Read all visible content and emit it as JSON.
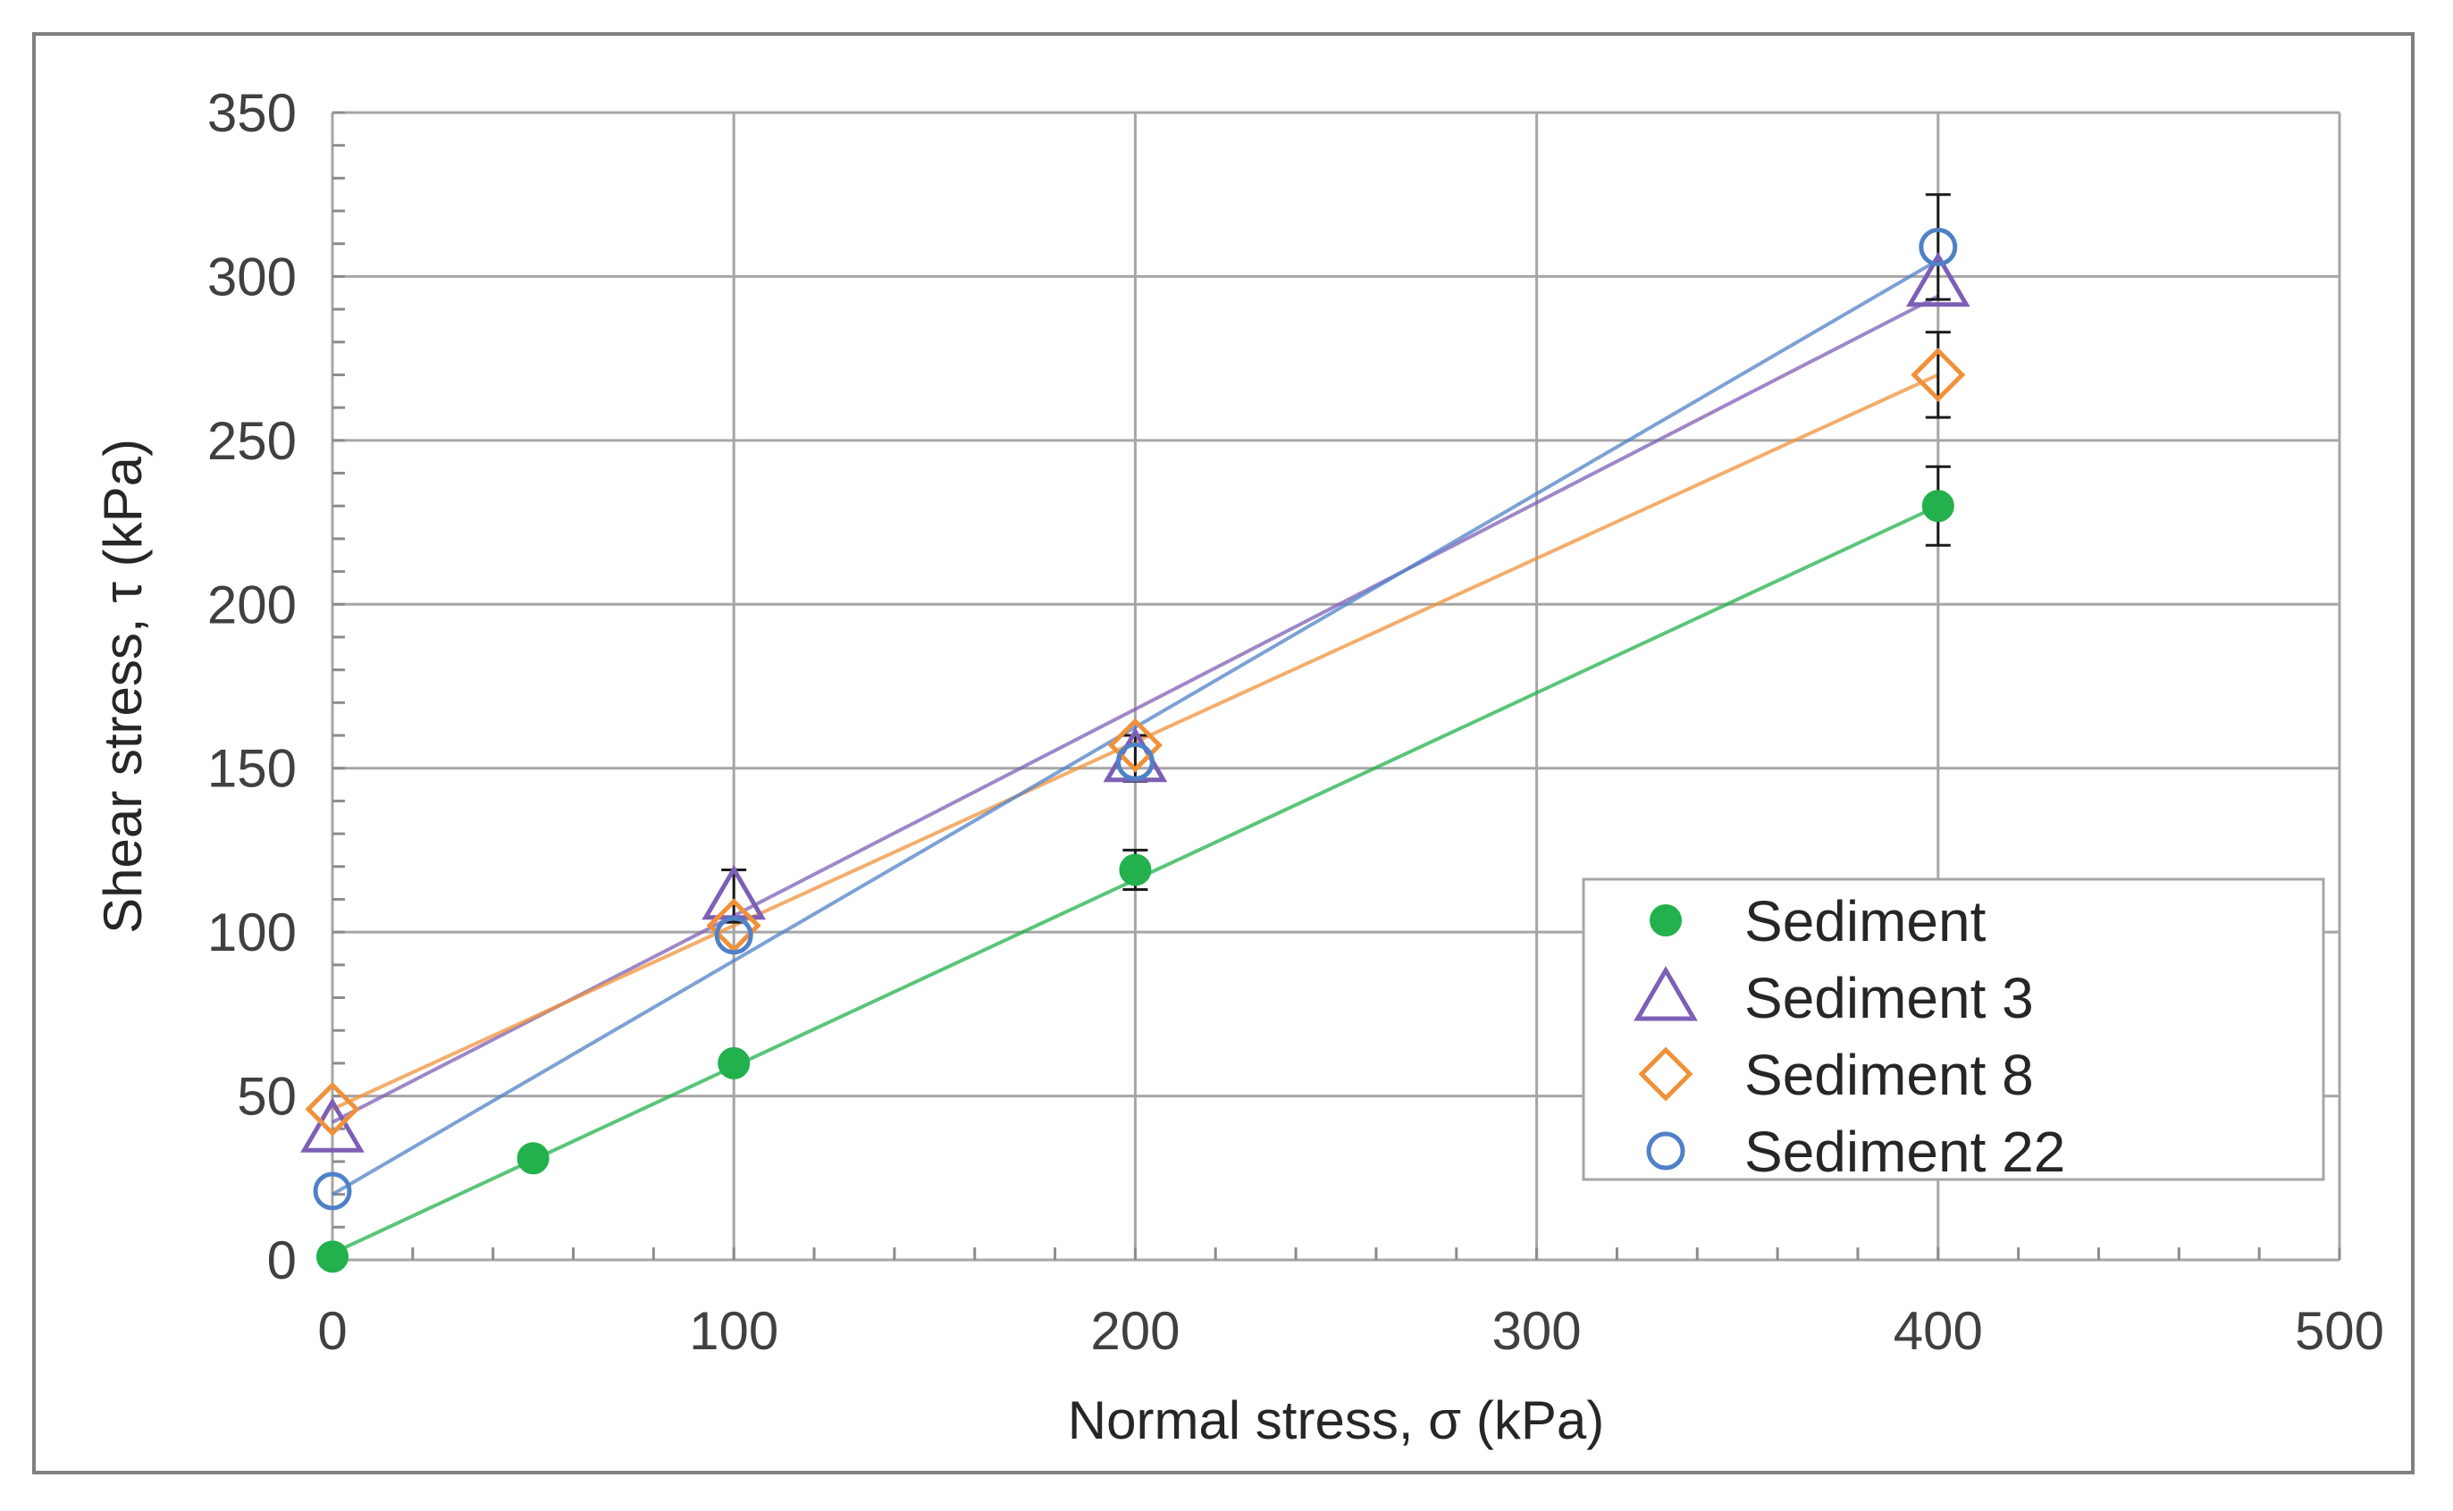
{
  "chart_data": {
    "type": "scatter",
    "title": "",
    "xlabel": "Normal stress, σ (kPa)",
    "ylabel": "Shear stress, τ (kPa)",
    "xlim": [
      0,
      500
    ],
    "ylim": [
      0,
      350
    ],
    "xticks": [
      0,
      100,
      200,
      300,
      400,
      500
    ],
    "yticks": [
      0,
      50,
      100,
      150,
      200,
      250,
      300,
      350
    ],
    "x_minor_step": 20,
    "y_minor_step": 10,
    "grid": true,
    "legend_position": "bottom-right",
    "series": [
      {
        "name": "Sediment",
        "marker": "filled-circle",
        "color": "#22b14c",
        "points": [
          {
            "x": 0,
            "y": 1,
            "err": 0
          },
          {
            "x": 50,
            "y": 31,
            "err": 0
          },
          {
            "x": 100,
            "y": 60,
            "err": 0
          },
          {
            "x": 200,
            "y": 119,
            "err": 6
          },
          {
            "x": 400,
            "y": 230,
            "err": 12
          }
        ],
        "fit": {
          "x": [
            0,
            400
          ],
          "y": [
            2,
            230
          ]
        }
      },
      {
        "name": "Sediment 3",
        "marker": "triangle",
        "color": "#7d5fb5",
        "points": [
          {
            "x": 0,
            "y": 40,
            "err": 0
          },
          {
            "x": 100,
            "y": 111,
            "err": 8
          },
          {
            "x": 200,
            "y": 153,
            "err": 7
          },
          {
            "x": 400,
            "y": 298,
            "err": 0
          }
        ],
        "fit": {
          "x": [
            0,
            400
          ],
          "y": [
            42,
            294
          ]
        }
      },
      {
        "name": "Sediment 8",
        "marker": "diamond",
        "color": "#f0913a",
        "points": [
          {
            "x": 0,
            "y": 46,
            "err": 0
          },
          {
            "x": 100,
            "y": 102,
            "err": 0
          },
          {
            "x": 200,
            "y": 157,
            "err": 0
          },
          {
            "x": 400,
            "y": 270,
            "err": 13
          }
        ],
        "fit": {
          "x": [
            0,
            400
          ],
          "y": [
            46,
            270
          ]
        }
      },
      {
        "name": "Sediment 22",
        "marker": "circle",
        "color": "#4f81c7",
        "points": [
          {
            "x": 0,
            "y": 21,
            "err": 0
          },
          {
            "x": 100,
            "y": 99,
            "err": 0
          },
          {
            "x": 200,
            "y": 152,
            "err": 0
          },
          {
            "x": 400,
            "y": 309,
            "err": 16
          }
        ],
        "fit": {
          "x": [
            0,
            400
          ],
          "y": [
            20,
            305
          ]
        }
      }
    ]
  }
}
